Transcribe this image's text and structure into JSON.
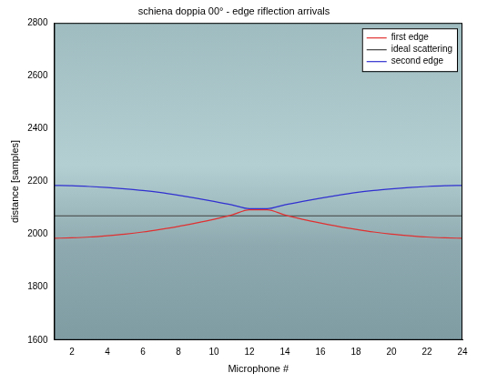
{
  "chart_data": {
    "type": "line",
    "title": "schiena doppia 00° - edge riflection arrivals",
    "x_label": "Microphone #",
    "y_label": "distance [samples]",
    "x": [
      1,
      2,
      3,
      4,
      5,
      6,
      7,
      8,
      9,
      10,
      11,
      12,
      13,
      14,
      15,
      16,
      17,
      18,
      19,
      20,
      21,
      22,
      23,
      24
    ],
    "series": [
      {
        "name": "first edge",
        "color": "#e03030",
        "values": [
          1985,
          1987,
          1990,
          1995,
          2001,
          2009,
          2019,
          2030,
          2043,
          2057,
          2073,
          2093,
          2093,
          2073,
          2057,
          2043,
          2030,
          2019,
          2009,
          2001,
          1995,
          1990,
          1987,
          1985
        ]
      },
      {
        "name": "ideal scattering",
        "color": "#404040",
        "values": [
          2070,
          2070,
          2070,
          2070,
          2070,
          2070,
          2070,
          2070,
          2070,
          2070,
          2070,
          2070,
          2070,
          2070,
          2070,
          2070,
          2070,
          2070,
          2070,
          2070,
          2070,
          2070,
          2070,
          2070
        ]
      },
      {
        "name": "second edge",
        "color": "#3030d0",
        "values": [
          2185,
          2184,
          2181,
          2177,
          2172,
          2166,
          2158,
          2148,
          2137,
          2125,
          2112,
          2097,
          2097,
          2112,
          2125,
          2137,
          2148,
          2158,
          2166,
          2172,
          2177,
          2181,
          2184,
          2185
        ]
      }
    ],
    "xlim": [
      1,
      24
    ],
    "xticks": [
      2,
      4,
      6,
      8,
      10,
      12,
      14,
      16,
      18,
      20,
      22,
      24
    ],
    "ylim": [
      1600,
      2800
    ],
    "yticks": [
      1600,
      1800,
      2000,
      2200,
      2400,
      2600,
      2800
    ],
    "grid": false,
    "legend": "upper right"
  }
}
